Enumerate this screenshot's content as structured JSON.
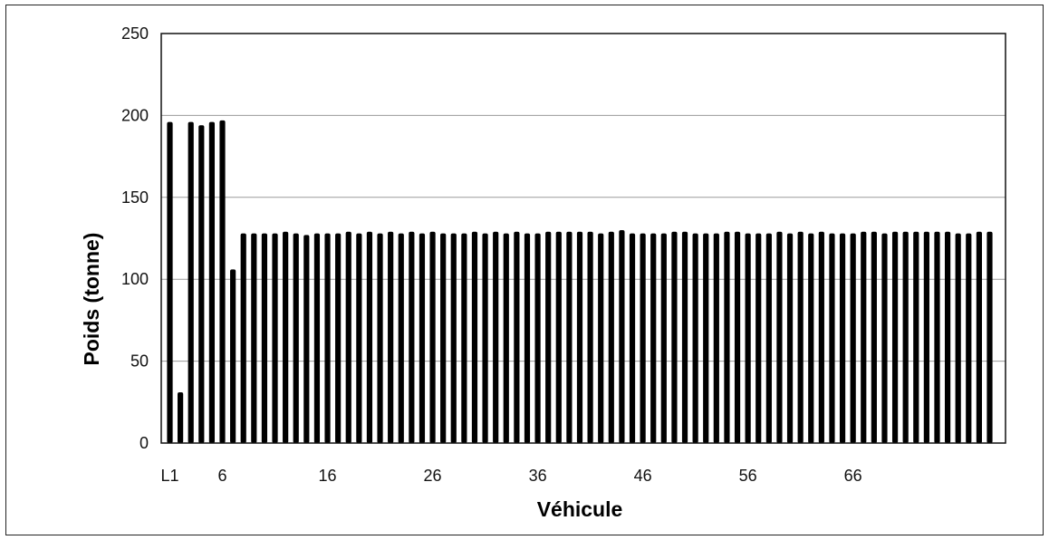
{
  "chart_data": {
    "type": "bar",
    "xlabel": "Véhicule",
    "ylabel": "Poids (tonne)",
    "ylim": [
      0,
      250
    ],
    "yticks": [
      0,
      50,
      100,
      150,
      200,
      250
    ],
    "grid": true,
    "x_tick_labels": [
      "L1",
      "6",
      "16",
      "26",
      "36",
      "46",
      "56",
      "66"
    ],
    "x_tick_positions": [
      1,
      6,
      16,
      26,
      36,
      46,
      56,
      66
    ],
    "bar_color": "#000000",
    "values": [
      196,
      31,
      196,
      194,
      196,
      197,
      106,
      128,
      128,
      128,
      128,
      129,
      128,
      127,
      128,
      128,
      128,
      129,
      128,
      129,
      128,
      129,
      128,
      129,
      128,
      129,
      128,
      128,
      128,
      129,
      128,
      129,
      128,
      129,
      128,
      128,
      129,
      129,
      129,
      129,
      129,
      128,
      129,
      130,
      128,
      128,
      128,
      128,
      129,
      129,
      128,
      128,
      128,
      129,
      129,
      128,
      128,
      128,
      129,
      128,
      129,
      128,
      129,
      128,
      128,
      128,
      129,
      129,
      128,
      129,
      129,
      129,
      129,
      129,
      129,
      128,
      128,
      129,
      129
    ]
  }
}
